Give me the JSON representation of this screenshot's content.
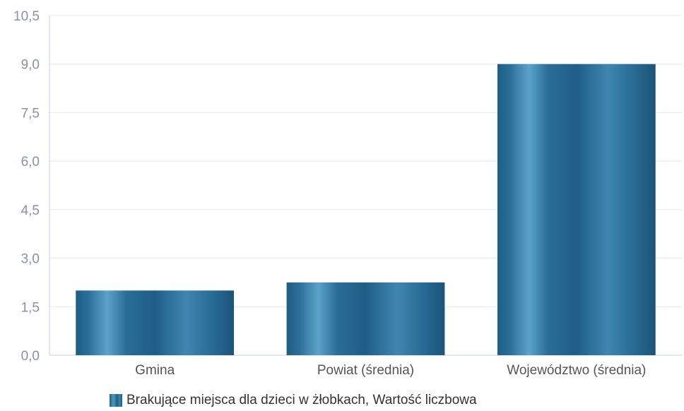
{
  "chart_data": {
    "type": "bar",
    "categories": [
      "Gmina",
      "Powiat (średnia)",
      "Województwo (średnia)"
    ],
    "series": [
      {
        "name": "Brakujące miejsca dla dzieci w żłobkach, Wartość liczbowa",
        "values": [
          2.0,
          2.25,
          9.0
        ]
      }
    ],
    "ylim": [
      0,
      10.5
    ],
    "yticks": [
      "0,0",
      "1,5",
      "3,0",
      "4,5",
      "6,0",
      "7,5",
      "9,0",
      "10,5"
    ],
    "ytick_values": [
      0,
      1.5,
      3.0,
      4.5,
      6.0,
      7.5,
      9.0,
      10.5
    ],
    "grid": true,
    "legend_position": "bottom-left",
    "colors": {
      "bar_dark": "#1e5d84",
      "bar_light": "#5ba3c9",
      "grid": "#e4e8f0",
      "axis": "#c8cce0",
      "tick_text": "#8a8fb0",
      "category_text": "#555555"
    }
  },
  "legend": {
    "label": "Brakujące miejsca dla dzieci w żłobkach, Wartość liczbowa",
    "swatch_icon": "square-swatch-icon"
  }
}
